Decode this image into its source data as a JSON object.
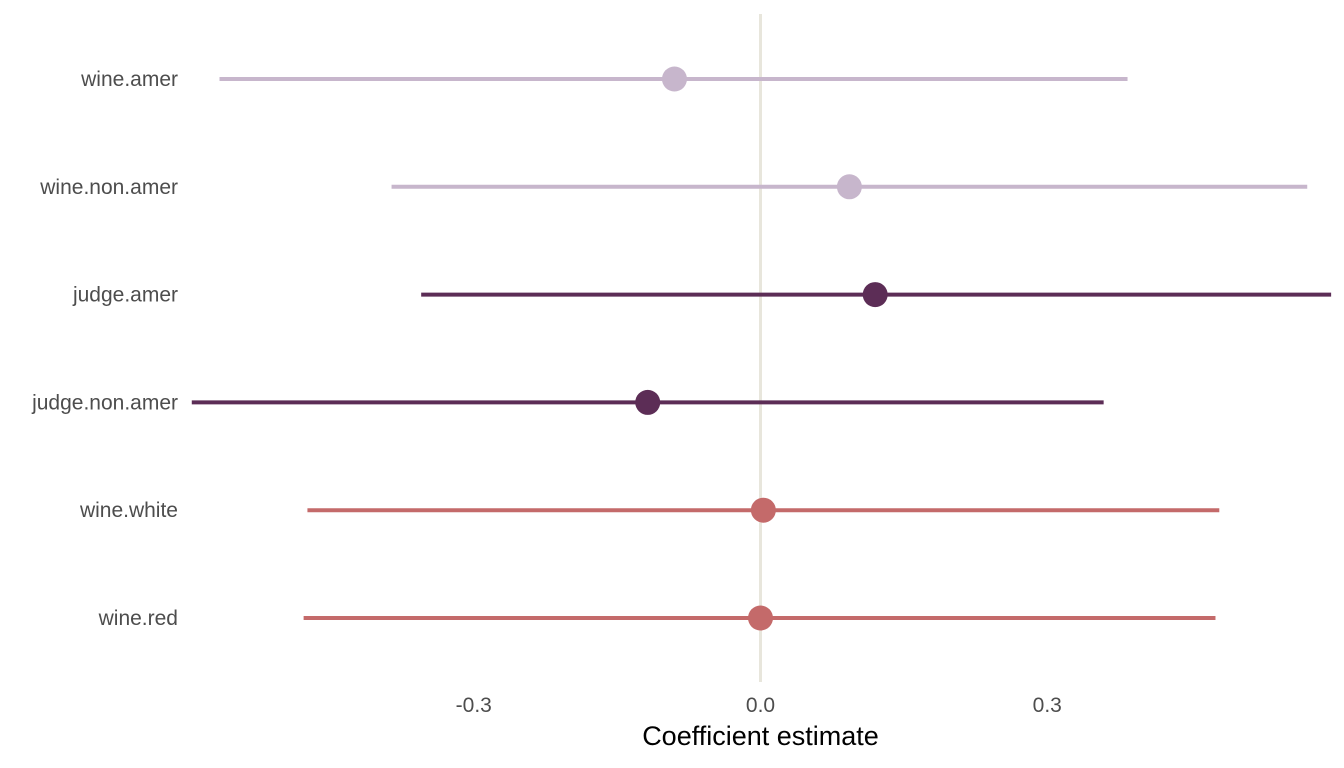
{
  "chart_data": {
    "type": "scatter",
    "subtype": "coefficient-plot",
    "title": "",
    "xlabel": "Coefficient estimate",
    "ylabel": "",
    "xlim": [
      -0.6,
      0.6
    ],
    "x_ticks": [
      -0.3,
      0.0,
      0.3
    ],
    "x_tick_labels": [
      "-0.3",
      "0.0",
      "0.3"
    ],
    "reference_line_x": 0.0,
    "grid": false,
    "legend": "none",
    "colors": {
      "reference_line": "#e8e6dc",
      "light_purple": "#c7b6cc",
      "dark_purple": "#5c2d56",
      "coral": "#c46a6a"
    },
    "rows": [
      {
        "label": "wine.amer",
        "estimate": -0.09,
        "lower": -0.566,
        "upper": 0.384,
        "color": "#c7b6cc"
      },
      {
        "label": "wine.non.amer",
        "estimate": 0.093,
        "lower": -0.386,
        "upper": 0.572,
        "color": "#c7b6cc"
      },
      {
        "label": "judge.amer",
        "estimate": 0.12,
        "lower": -0.355,
        "upper": 0.597,
        "color": "#5c2d56"
      },
      {
        "label": "judge.non.amer",
        "estimate": -0.118,
        "lower": -0.595,
        "upper": 0.359,
        "color": "#5c2d56"
      },
      {
        "label": "wine.white",
        "estimate": 0.003,
        "lower": -0.474,
        "upper": 0.48,
        "color": "#c46a6a"
      },
      {
        "label": "wine.red",
        "estimate": 0.0,
        "lower": -0.478,
        "upper": 0.476,
        "color": "#c46a6a"
      }
    ]
  }
}
